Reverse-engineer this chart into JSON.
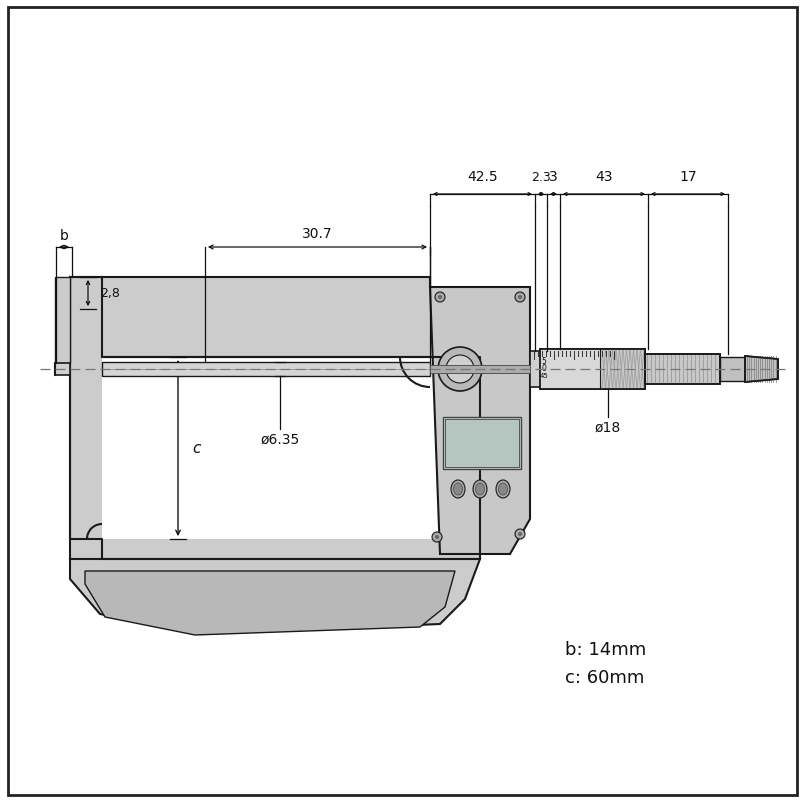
{
  "bg_color": "#ffffff",
  "fig_width": 8.05,
  "fig_height": 8.04,
  "dpi": 100,
  "frame_color": "#cccccc",
  "frame_edge": "#1a1a1a",
  "body_color": "#c0c0c0",
  "tube_color": "#d8d8d8",
  "dim_color": "#111111",
  "dim_labels": {
    "b": "b",
    "val_28": "2,8",
    "val_307": "30.7",
    "val_425": "42.5",
    "val_23": "2.3",
    "val_3": "3",
    "val_43": "43",
    "val_17": "17",
    "val_635": "ø6.35",
    "val_18": "ø18",
    "b_note": "b: 14mm",
    "c_note": "c: 60mm",
    "c": "c"
  }
}
